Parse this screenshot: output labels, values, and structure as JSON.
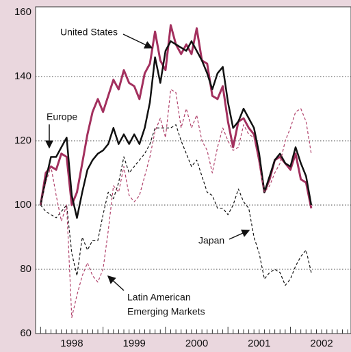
{
  "chart_data": {
    "type": "line",
    "x": [
      1998.0,
      1998.083,
      1998.167,
      1998.25,
      1998.333,
      1998.417,
      1998.5,
      1998.583,
      1998.667,
      1998.75,
      1998.833,
      1998.917,
      1999.0,
      1999.083,
      1999.167,
      1999.25,
      1999.333,
      1999.417,
      1999.5,
      1999.583,
      1999.667,
      1999.75,
      1999.833,
      1999.917,
      2000.0,
      2000.083,
      2000.167,
      2000.25,
      2000.333,
      2000.417,
      2000.5,
      2000.583,
      2000.667,
      2000.75,
      2000.833,
      2000.917,
      2001.0,
      2001.083,
      2001.167,
      2001.25,
      2001.333,
      2001.417,
      2001.5,
      2001.583,
      2001.667,
      2001.75,
      2001.833,
      2001.917,
      2002.0,
      2002.083,
      2002.167,
      2002.25,
      2002.333
    ],
    "series": [
      {
        "name": "United States",
        "color": "#a3305e",
        "style": "solid",
        "width": 3,
        "values": [
          100,
          110,
          112,
          111,
          116,
          115,
          100,
          104,
          113,
          122,
          129,
          133,
          129,
          134,
          139,
          136,
          142,
          138,
          137,
          133,
          141,
          144,
          154,
          145,
          142,
          156,
          150,
          147,
          150,
          147,
          155,
          145,
          144,
          134,
          133,
          137,
          126,
          118,
          126,
          127,
          124,
          122,
          114,
          104,
          108,
          114,
          115,
          113,
          111,
          116,
          108,
          107,
          99
        ]
      },
      {
        "name": "Europe",
        "color": "#111111",
        "style": "solid",
        "width": 2.5,
        "values": [
          100,
          108,
          115,
          115,
          118,
          121,
          103,
          96,
          104,
          111,
          114,
          116,
          117,
          119,
          124,
          119,
          122,
          119,
          122,
          119,
          124,
          132,
          146,
          138,
          148,
          151,
          150,
          149,
          148,
          151,
          148,
          145,
          141,
          136,
          141,
          143,
          132,
          124,
          126,
          130,
          127,
          124,
          116,
          104,
          109,
          114,
          116,
          113,
          112,
          118,
          113,
          109,
          100
        ]
      },
      {
        "name": "Japan",
        "color": "#111111",
        "style": "dashed",
        "width": 1.2,
        "values": [
          100,
          98,
          97,
          96,
          98,
          100,
          85,
          78,
          90,
          86,
          89,
          89,
          97,
          104,
          102,
          107,
          115,
          110,
          112,
          114,
          116,
          119,
          124,
          124,
          124,
          124,
          125,
          120,
          116,
          112,
          114,
          109,
          104,
          103,
          99,
          99,
          97,
          100,
          105,
          101,
          99,
          90,
          85,
          77,
          79,
          80,
          79,
          75,
          77,
          81,
          84,
          86,
          79
        ]
      },
      {
        "name": "Latin American Emerging Markets",
        "color": "#b0406a",
        "style": "dashed",
        "width": 1.2,
        "values": [
          100,
          107,
          112,
          103,
          95,
          100,
          65,
          72,
          78,
          82,
          78,
          76,
          80,
          92,
          106,
          104,
          112,
          103,
          101,
          103,
          109,
          115,
          123,
          127,
          121,
          136,
          135,
          124,
          130,
          124,
          128,
          120,
          117,
          110,
          118,
          124,
          120,
          117,
          118,
          125,
          122,
          121,
          113,
          104,
          106,
          110,
          113,
          120,
          124,
          129,
          130,
          126,
          116
        ]
      }
    ],
    "annotations": [
      "United States",
      "Europe",
      "Japan",
      "Latin American",
      "Emerging Markets"
    ],
    "xlim": [
      1997.92,
      2002.97
    ],
    "xticks": [
      {
        "value": 1998.5,
        "label": "1998"
      },
      {
        "value": 1999.5,
        "label": "1999"
      },
      {
        "value": 2000.5,
        "label": "2000"
      },
      {
        "value": 2001.5,
        "label": "2001"
      },
      {
        "value": 2002.5,
        "label": "2002"
      }
    ],
    "ylim": [
      60,
      161.7
    ],
    "yticks": [
      60,
      80,
      100,
      120,
      140,
      160
    ],
    "grid": true
  }
}
